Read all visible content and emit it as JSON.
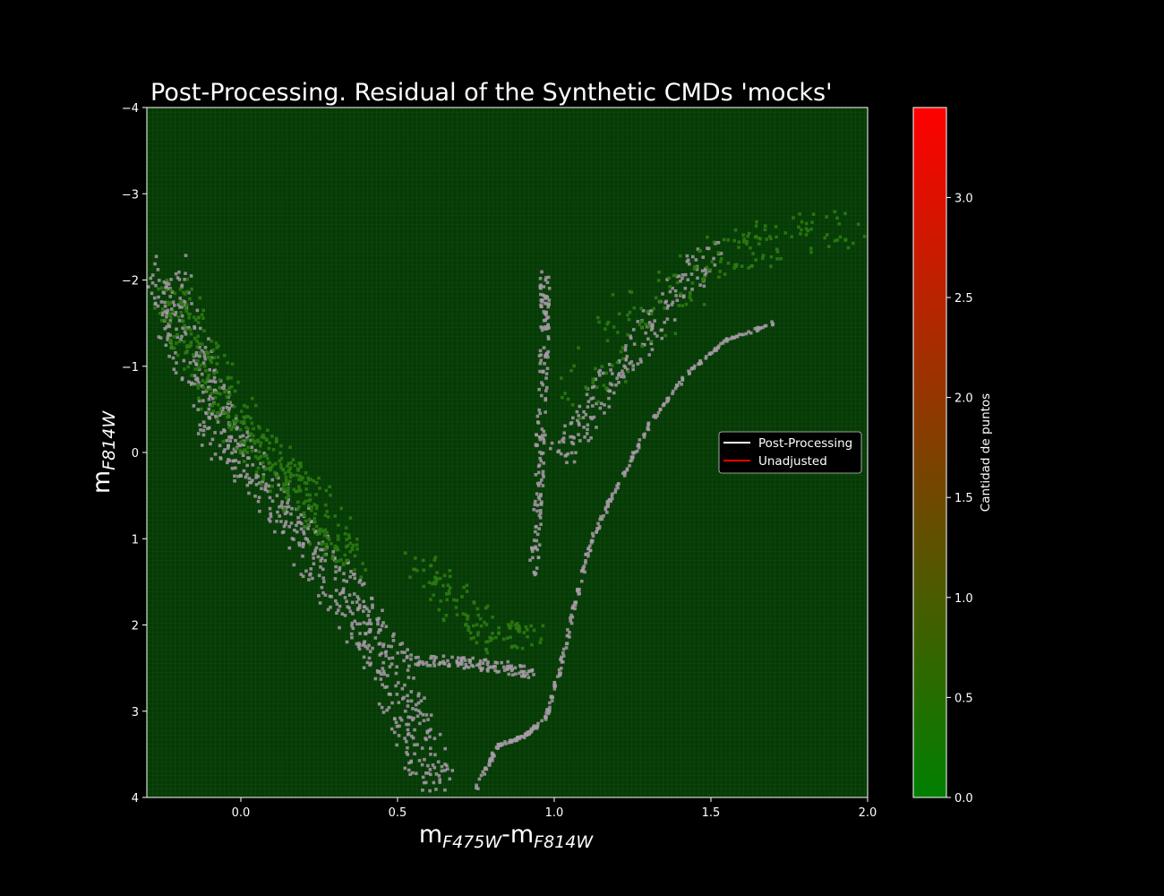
{
  "chart_data": {
    "type": "heatmap",
    "title": "Post-Processing. Residual of the Synthetic CMDs 'mocks'",
    "xlabel": "m_{F475W}-m_{F814W}",
    "ylabel": "m_{F814W}",
    "xlim": [
      -0.3,
      2.0
    ],
    "ylim": [
      4,
      -4
    ],
    "y_inverted": true,
    "x_ticks": [
      0.0,
      0.5,
      1.0,
      1.5,
      2.0
    ],
    "x_tick_labels": [
      "0.0",
      "0.5",
      "1.0",
      "1.5",
      "2.0"
    ],
    "y_ticks": [
      -4,
      -3,
      -2,
      -1,
      0,
      1,
      2,
      3,
      4
    ],
    "y_tick_labels": [
      "−4",
      "−3",
      "−2",
      "−1",
      "0",
      "1",
      "2",
      "3",
      "4"
    ],
    "background_color": "#073a07",
    "grid": true,
    "legend": {
      "placement": "center-right",
      "entries": [
        {
          "label": "Post-Processing",
          "color": "#ffffff"
        },
        {
          "label": "Unadjusted",
          "color": "#ff0000"
        }
      ]
    },
    "colorbar": {
      "label": "Cantidad de puntos",
      "range": [
        0.0,
        3.45
      ],
      "ticks": [
        0.0,
        0.5,
        1.0,
        1.5,
        2.0,
        2.5,
        3.0
      ],
      "tick_labels": [
        "0.0",
        "0.5",
        "1.0",
        "1.5",
        "2.0",
        "2.5",
        "3.0"
      ],
      "colors": [
        "#008000",
        "#ff0000"
      ]
    },
    "series": [
      {
        "name": "Post-Processing",
        "color": "#a89aa8",
        "regions": [
          {
            "part": "main-sequence",
            "x": [
              -0.24,
              -0.2,
              -0.12,
              -0.05,
              0.05,
              0.18,
              0.3,
              0.4,
              0.48,
              0.55,
              0.62
            ],
            "y": [
              -2.2,
              -1.5,
              -0.8,
              -0.2,
              0.3,
              0.9,
              1.5,
              2.0,
              2.5,
              3.2,
              3.9
            ]
          },
          {
            "part": "subgiant-branch",
            "x": [
              0.55,
              0.65,
              0.75,
              0.85,
              0.92
            ],
            "y": [
              2.4,
              2.42,
              2.45,
              2.5,
              2.55
            ]
          },
          {
            "part": "red-giant-branch",
            "x": [
              0.93,
              0.95,
              0.96,
              0.97,
              0.97
            ],
            "y": [
              1.5,
              0.5,
              -0.5,
              -1.5,
              -2.1
            ]
          },
          {
            "part": "outer-sequence",
            "x": [
              0.75,
              0.82,
              0.9,
              0.97,
              1.02,
              1.07,
              1.12,
              1.2,
              1.3,
              1.42,
              1.55,
              1.7
            ],
            "y": [
              3.9,
              3.4,
              3.3,
              3.1,
              2.5,
              1.7,
              1.0,
              0.4,
              -0.3,
              -0.9,
              -1.3,
              -1.5
            ]
          },
          {
            "part": "red-clump-upper-branch",
            "x": [
              1.02,
              1.1,
              1.2,
              1.3,
              1.4,
              1.52
            ],
            "y": [
              0.1,
              -0.4,
              -0.9,
              -1.4,
              -1.9,
              -2.4
            ]
          }
        ]
      },
      {
        "name": "Unadjusted",
        "color": "#2c7a12",
        "regions": [
          {
            "part": "main-sequence",
            "x": [
              -0.22,
              -0.15,
              -0.05,
              0.05,
              0.15,
              0.25,
              0.35
            ],
            "y": [
              -1.9,
              -1.3,
              -0.6,
              -0.1,
              0.3,
              0.7,
              1.3
            ]
          },
          {
            "part": "subgiant-region",
            "x": [
              0.55,
              0.65,
              0.75,
              0.85,
              0.92
            ],
            "y": [
              1.2,
              1.6,
              2.0,
              2.2,
              2.1
            ]
          },
          {
            "part": "giant-fan",
            "x": [
              1.05,
              1.2,
              1.35,
              1.5,
              1.65,
              1.8,
              1.95
            ],
            "y": [
              -0.5,
              -1.3,
              -1.8,
              -2.2,
              -2.4,
              -2.5,
              -2.6
            ]
          }
        ]
      }
    ]
  }
}
